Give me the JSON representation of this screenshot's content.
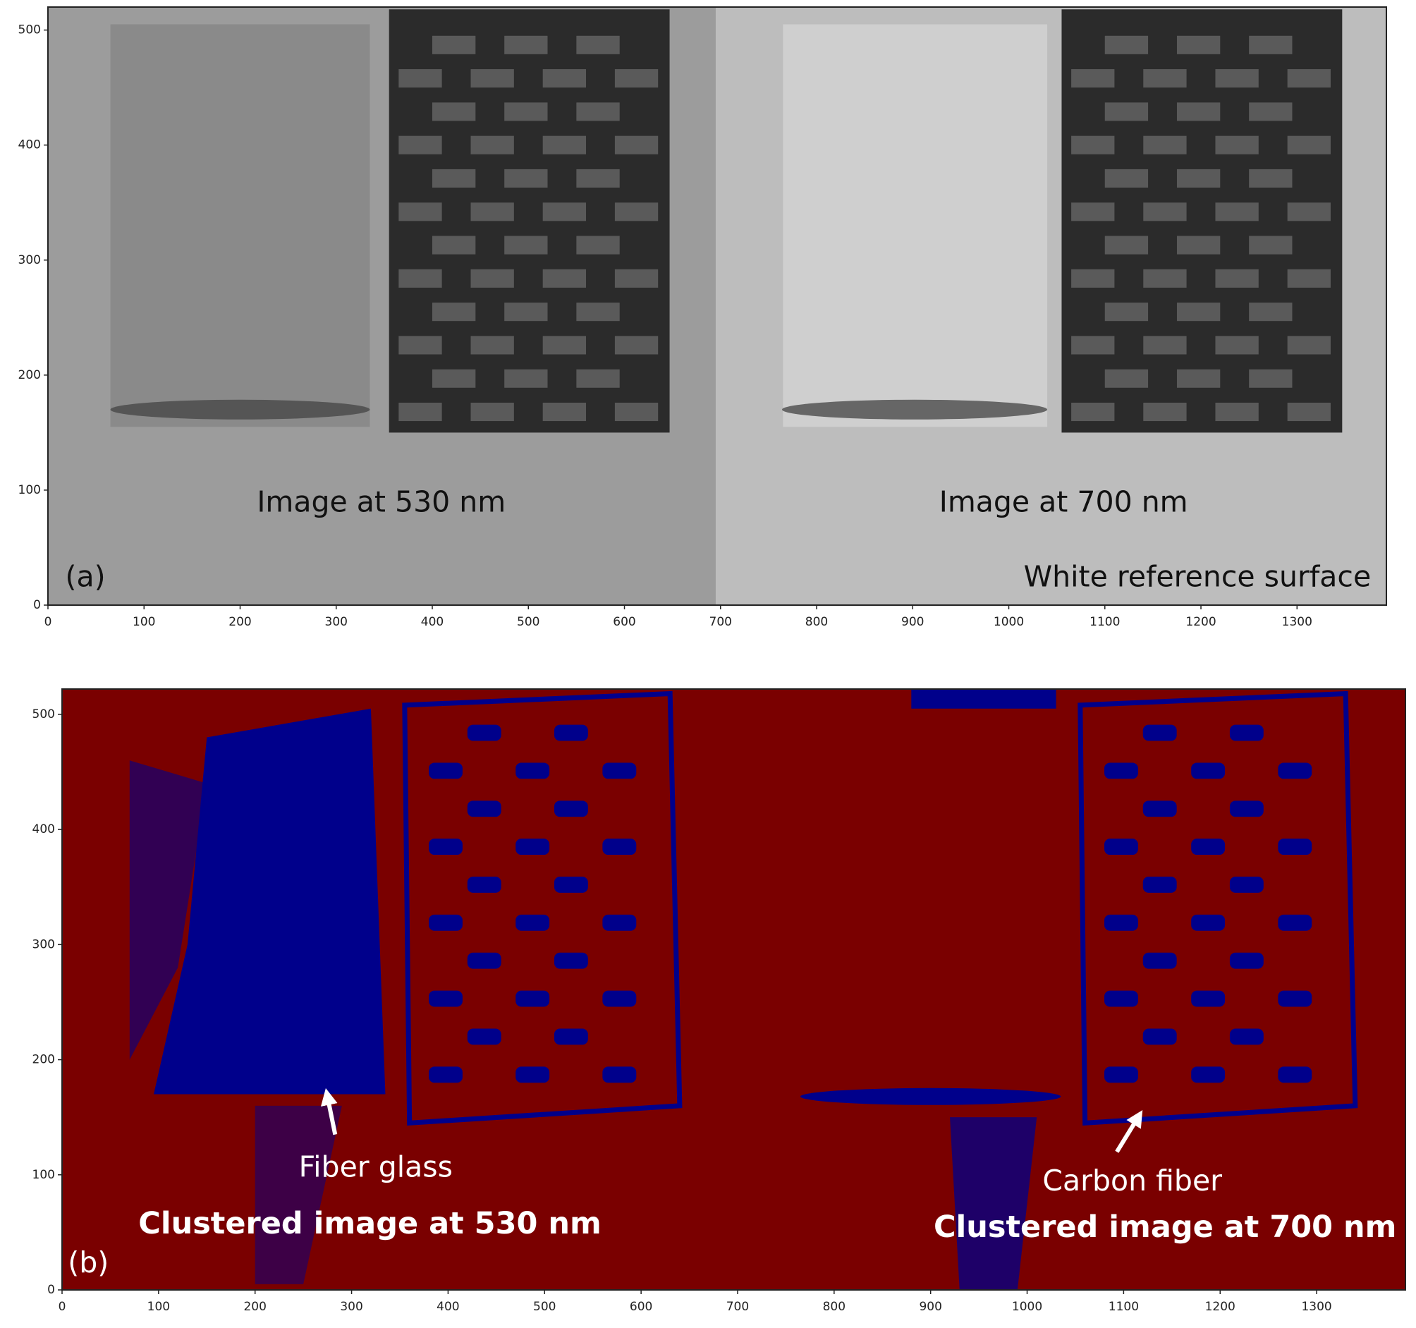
{
  "chart_data": [
    {
      "type": "image",
      "panel": "a",
      "xlim": [
        0,
        1393
      ],
      "ylim": [
        0,
        520
      ],
      "xticks": [
        0,
        100,
        200,
        300,
        400,
        500,
        600,
        700,
        800,
        900,
        1000,
        1100,
        1200,
        1300
      ],
      "yticks": [
        0,
        100,
        200,
        300,
        400,
        500
      ],
      "grid": false,
      "annotations": [
        "(a)",
        "Image at 530 nm",
        "Image at 700 nm",
        "White reference surface"
      ]
    },
    {
      "type": "image",
      "panel": "b",
      "xlim": [
        0,
        1392
      ],
      "ylim": [
        0,
        522
      ],
      "xticks": [
        0,
        100,
        200,
        300,
        400,
        500,
        600,
        700,
        800,
        900,
        1000,
        1100,
        1200,
        1300
      ],
      "yticks": [
        0,
        100,
        200,
        300,
        400,
        500
      ],
      "grid": false,
      "annotations": [
        "(b)",
        "Fiber glass",
        "Carbon fiber",
        "Clustered image at 530 nm",
        "Clustered image at 700 nm"
      ]
    }
  ]
}
